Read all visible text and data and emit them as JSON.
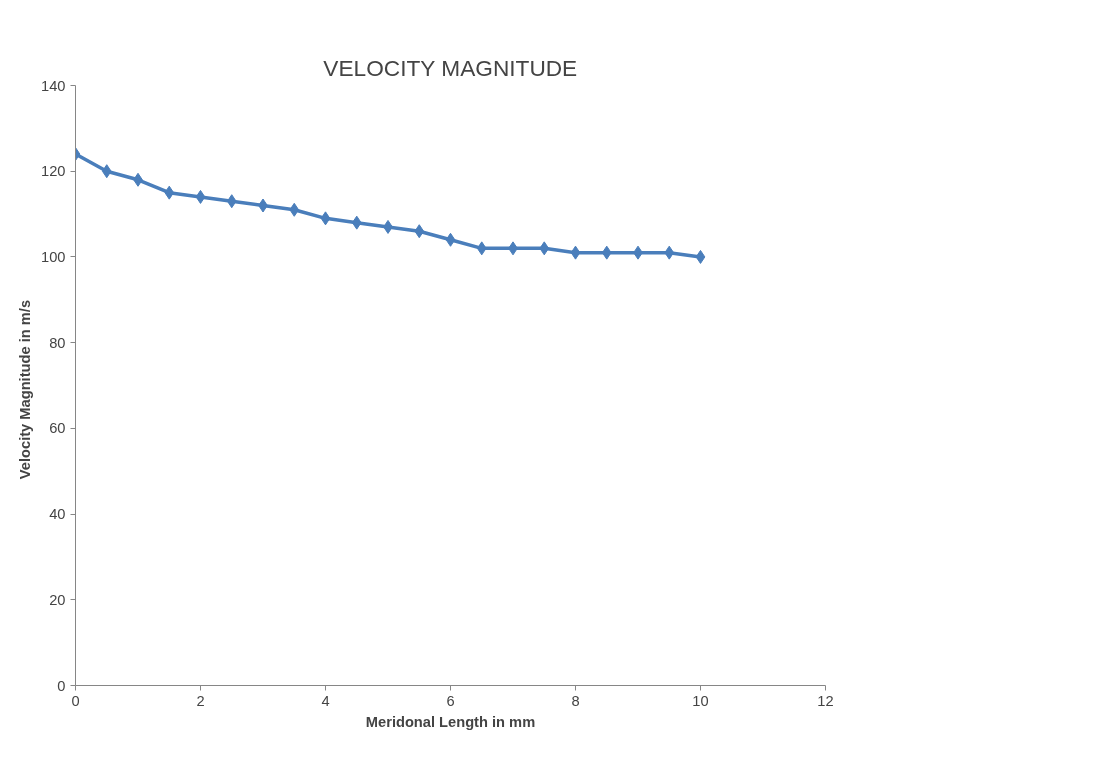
{
  "chart_data": {
    "type": "line",
    "title": "VELOCITY MAGNITUDE",
    "xlabel": "Meridonal Length in mm",
    "ylabel": "Velocity Magnitude  in  m/s",
    "x": [
      0,
      0.5,
      1,
      1.5,
      2,
      2.5,
      3,
      3.5,
      4,
      4.5,
      5,
      5.5,
      6,
      6.5,
      7,
      7.5,
      8,
      8.5,
      9,
      9.5,
      10
    ],
    "series": [
      {
        "color": "#4a7ebb",
        "values": [
          124,
          120,
          118,
          115,
          114,
          113,
          112,
          111,
          109,
          108,
          107,
          106,
          104,
          102,
          102,
          102,
          101,
          101,
          101,
          101,
          100
        ]
      }
    ],
    "xlim": [
      0,
      12
    ],
    "xticks": [
      0,
      2,
      4,
      6,
      8,
      10,
      12
    ],
    "ylim": [
      0,
      140
    ],
    "yticks": [
      0,
      20,
      40,
      60,
      80,
      100,
      120,
      140
    ],
    "grid": false,
    "marker": "diamond",
    "line_style": "solid"
  }
}
